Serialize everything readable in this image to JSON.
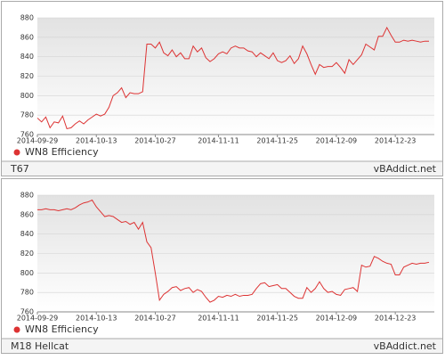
{
  "chart_data": [
    {
      "type": "line",
      "title": "T67",
      "source": "vBAddict.net",
      "x": [
        "2014-09-29",
        "2014-09-30",
        "2014-10-01",
        "2014-10-02",
        "2014-10-03",
        "2014-10-04",
        "2014-10-05",
        "2014-10-06",
        "2014-10-07",
        "2014-10-08",
        "2014-10-09",
        "2014-10-10",
        "2014-10-11",
        "2014-10-12",
        "2014-10-13",
        "2014-10-14",
        "2014-10-15",
        "2014-10-16",
        "2014-10-17",
        "2014-10-18",
        "2014-10-19",
        "2014-10-20",
        "2014-10-21",
        "2014-10-22",
        "2014-10-23",
        "2014-10-24",
        "2014-10-25",
        "2014-10-26",
        "2014-10-27",
        "2014-10-28",
        "2014-10-29",
        "2014-10-30",
        "2014-10-31",
        "2014-11-01",
        "2014-11-02",
        "2014-11-03",
        "2014-11-04",
        "2014-11-05",
        "2014-11-06",
        "2014-11-07",
        "2014-11-08",
        "2014-11-09",
        "2014-11-10",
        "2014-11-11",
        "2014-11-12",
        "2014-11-13",
        "2014-11-14",
        "2014-11-15",
        "2014-11-16",
        "2014-11-17",
        "2014-11-18",
        "2014-11-19",
        "2014-11-20",
        "2014-11-21",
        "2014-11-22",
        "2014-11-23",
        "2014-11-24",
        "2014-11-25",
        "2014-11-26",
        "2014-11-27",
        "2014-11-28",
        "2014-11-29",
        "2014-11-30",
        "2014-12-01",
        "2014-12-02",
        "2014-12-03",
        "2014-12-04",
        "2014-12-05",
        "2014-12-06",
        "2014-12-07",
        "2014-12-08",
        "2014-12-09",
        "2014-12-10",
        "2014-12-11",
        "2014-12-12",
        "2014-12-13",
        "2014-12-14",
        "2014-12-15",
        "2014-12-16",
        "2014-12-17",
        "2014-12-18",
        "2014-12-19",
        "2014-12-20",
        "2014-12-21",
        "2014-12-22",
        "2014-12-23",
        "2014-12-24",
        "2014-12-25",
        "2014-12-26",
        "2014-12-27",
        "2014-12-28",
        "2014-12-29",
        "2014-12-30",
        "2014-12-31"
      ],
      "series": [
        {
          "name": "WN8 Efficiency",
          "color": "#dd3333",
          "values": [
            777,
            773,
            778,
            767,
            773,
            772,
            779,
            766,
            767,
            771,
            774,
            771,
            775,
            778,
            781,
            779,
            781,
            788,
            800,
            803,
            808,
            798,
            803,
            802,
            802,
            804,
            853,
            853,
            849,
            855,
            844,
            841,
            847,
            840,
            844,
            838,
            838,
            851,
            845,
            849,
            839,
            835,
            838,
            843,
            845,
            843,
            849,
            851,
            849,
            849,
            846,
            845,
            840,
            844,
            841,
            838,
            844,
            836,
            834,
            836,
            841,
            833,
            838,
            851,
            843,
            832,
            822,
            832,
            829,
            830,
            830,
            834,
            829,
            823,
            837,
            832,
            837,
            842,
            853,
            850,
            847,
            861,
            861,
            870,
            862,
            855,
            855,
            857,
            856,
            857,
            856,
            855,
            856,
            856
          ]
        }
      ],
      "ylim": [
        760,
        880
      ],
      "yticks": [
        760,
        780,
        800,
        820,
        840,
        860,
        880
      ],
      "xticks": [
        "2014-09-29",
        "2014-10-13",
        "2014-10-27",
        "2014-11-11",
        "2014-11-25",
        "2014-12-09",
        "2014-12-23"
      ],
      "grid": true
    },
    {
      "type": "line",
      "title": "M18 Hellcat",
      "source": "vBAddict.net",
      "x": [
        "2014-09-29",
        "2014-09-30",
        "2014-10-01",
        "2014-10-02",
        "2014-10-03",
        "2014-10-04",
        "2014-10-05",
        "2014-10-06",
        "2014-10-07",
        "2014-10-08",
        "2014-10-09",
        "2014-10-10",
        "2014-10-11",
        "2014-10-12",
        "2014-10-13",
        "2014-10-14",
        "2014-10-15",
        "2014-10-16",
        "2014-10-17",
        "2014-10-18",
        "2014-10-19",
        "2014-10-20",
        "2014-10-21",
        "2014-10-22",
        "2014-10-23",
        "2014-10-24",
        "2014-10-25",
        "2014-10-26",
        "2014-10-27",
        "2014-10-28",
        "2014-10-29",
        "2014-10-30",
        "2014-10-31",
        "2014-11-01",
        "2014-11-02",
        "2014-11-03",
        "2014-11-04",
        "2014-11-05",
        "2014-11-06",
        "2014-11-07",
        "2014-11-08",
        "2014-11-09",
        "2014-11-10",
        "2014-11-11",
        "2014-11-12",
        "2014-11-13",
        "2014-11-14",
        "2014-11-15",
        "2014-11-16",
        "2014-11-17",
        "2014-11-18",
        "2014-11-19",
        "2014-11-20",
        "2014-11-21",
        "2014-11-22",
        "2014-11-23",
        "2014-11-24",
        "2014-11-25",
        "2014-11-26",
        "2014-11-27",
        "2014-11-28",
        "2014-11-29",
        "2014-11-30",
        "2014-12-01",
        "2014-12-02",
        "2014-12-03",
        "2014-12-04",
        "2014-12-05",
        "2014-12-06",
        "2014-12-07",
        "2014-12-08",
        "2014-12-09",
        "2014-12-10",
        "2014-12-11",
        "2014-12-12",
        "2014-12-13",
        "2014-12-14",
        "2014-12-15",
        "2014-12-16",
        "2014-12-17",
        "2014-12-18",
        "2014-12-19",
        "2014-12-20",
        "2014-12-21",
        "2014-12-22",
        "2014-12-23",
        "2014-12-24",
        "2014-12-25",
        "2014-12-26",
        "2014-12-27",
        "2014-12-28",
        "2014-12-29",
        "2014-12-30",
        "2014-12-31"
      ],
      "series": [
        {
          "name": "WN8 Efficiency",
          "color": "#dd3333",
          "values": [
            865,
            865,
            866,
            865,
            865,
            864,
            865,
            866,
            865,
            867,
            870,
            872,
            873,
            875,
            868,
            863,
            858,
            859,
            858,
            855,
            852,
            853,
            850,
            852,
            845,
            852,
            832,
            826,
            800,
            772,
            778,
            781,
            785,
            786,
            782,
            784,
            785,
            780,
            783,
            781,
            775,
            770,
            772,
            776,
            775,
            777,
            776,
            778,
            776,
            777,
            777,
            778,
            784,
            789,
            790,
            786,
            787,
            788,
            784,
            784,
            780,
            776,
            774,
            774,
            785,
            780,
            784,
            791,
            784,
            780,
            781,
            778,
            777,
            783,
            784,
            785,
            781,
            808,
            806,
            807,
            817,
            815,
            812,
            810,
            809,
            798,
            798,
            806,
            808,
            810,
            809,
            810,
            810,
            811
          ]
        }
      ],
      "ylim": [
        760,
        880
      ],
      "yticks": [
        760,
        780,
        800,
        820,
        840,
        860,
        880
      ],
      "xticks": [
        "2014-09-29",
        "2014-10-13",
        "2014-10-27",
        "2014-11-11",
        "2014-11-25",
        "2014-12-09",
        "2014-12-23"
      ],
      "grid": true
    }
  ]
}
